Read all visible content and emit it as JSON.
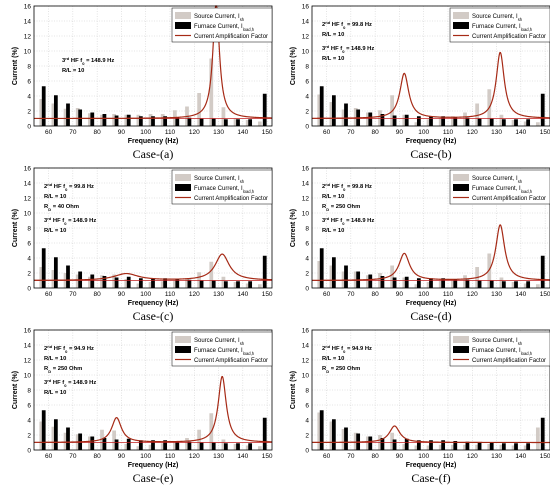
{
  "figure": {
    "captions": [
      "Case-(a)",
      "Case-(b)",
      "Case-(c)",
      "Case-(d)",
      "Case-(e)",
      "Case-(f)"
    ]
  },
  "colors": {
    "source_bar": "#d2cbc6",
    "furnace_bar": "#000000",
    "amp_line": "#a62a16",
    "baseline": "#c21f1f"
  },
  "chart_data": [
    {
      "type": "bar",
      "caption": "Case-(a)",
      "xlabel": "Frequency (Hz)",
      "ylabel": "Current (%)",
      "xlim": [
        54,
        152
      ],
      "ylim": [
        0,
        16
      ],
      "xticks": [
        60,
        70,
        80,
        90,
        100,
        110,
        120,
        130,
        140,
        150
      ],
      "yticks": [
        0,
        2,
        4,
        6,
        8,
        10,
        12,
        14,
        16
      ],
      "legend": [
        "Source Current, I_sh",
        "Furnace Current, I_load,h",
        "Current Amplification Factor"
      ],
      "annotations": [
        "3rd HF f0 = 148.9 Hz",
        "R/L = 10"
      ],
      "series": [
        {
          "name": "Source Current, I_sh",
          "kind": "bar",
          "x": [
            57,
            62,
            67,
            72,
            77,
            82,
            87,
            92,
            97,
            102,
            107,
            112,
            117,
            122,
            127,
            132,
            137,
            142,
            147
          ],
          "values": [
            3.6,
            3.0,
            2.3,
            2.4,
            1.7,
            1.5,
            1.6,
            1.5,
            1.5,
            1.6,
            1.6,
            2.1,
            2.6,
            4.4,
            9.0,
            2.5,
            1.0,
            0.8,
            0.6
          ]
        },
        {
          "name": "Furnace Current, I_load,h",
          "kind": "bar",
          "x": [
            58,
            63,
            68,
            73,
            78,
            83,
            88,
            93,
            98,
            103,
            108,
            113,
            118,
            123,
            128,
            133,
            138,
            143,
            149
          ],
          "values": [
            5.3,
            4.1,
            3.0,
            2.2,
            1.8,
            1.6,
            1.4,
            1.5,
            1.3,
            1.3,
            1.3,
            1.2,
            1.1,
            1.0,
            1.0,
            0.9,
            0.9,
            0.9,
            4.3
          ]
        },
        {
          "name": "Current Amplification Factor",
          "kind": "line",
          "peaks": [
            {
              "f": 129,
              "a": 15.5,
              "w": 1.6
            }
          ]
        }
      ]
    },
    {
      "type": "bar",
      "caption": "Case-(b)",
      "xlabel": "Frequency (Hz)",
      "ylabel": "Current (%)",
      "xlim": [
        54,
        152
      ],
      "ylim": [
        0,
        16
      ],
      "xticks": [
        60,
        70,
        80,
        90,
        100,
        110,
        120,
        130,
        140,
        150
      ],
      "yticks": [
        0,
        2,
        4,
        6,
        8,
        10,
        12,
        14,
        16
      ],
      "legend": [
        "Source Current, I_sh",
        "Furnace Current, I_load,h",
        "Current Amplification Factor"
      ],
      "annotations": [
        "2nd HF f0 = 99.8 Hz",
        "R/L = 10",
        "3rd HF f0 = 148.9 Hz",
        "R/L = 10"
      ],
      "series": [
        {
          "name": "Source Current, I_sh",
          "kind": "bar",
          "x": [
            57,
            62,
            67,
            72,
            77,
            82,
            87,
            92,
            97,
            102,
            107,
            112,
            117,
            122,
            127,
            132,
            137,
            142,
            147
          ],
          "values": [
            4.2,
            3.2,
            2.2,
            2.4,
            1.8,
            2.1,
            4.1,
            1.5,
            0.5,
            0.9,
            1.1,
            1.3,
            1.8,
            3.0,
            4.9,
            1.5,
            0.8,
            0.6,
            0.5
          ]
        },
        {
          "name": "Furnace Current, I_load,h",
          "kind": "bar",
          "x": [
            58,
            63,
            68,
            73,
            78,
            83,
            88,
            93,
            98,
            103,
            108,
            113,
            118,
            123,
            128,
            133,
            138,
            143,
            149
          ],
          "values": [
            5.3,
            4.1,
            3.0,
            2.2,
            1.8,
            1.6,
            1.4,
            1.5,
            1.3,
            1.3,
            1.3,
            1.2,
            1.1,
            1.0,
            1.0,
            0.9,
            0.9,
            0.9,
            4.3
          ]
        },
        {
          "name": "Current Amplification Factor",
          "kind": "line",
          "peaks": [
            {
              "f": 92,
              "a": 6.0,
              "w": 2.2
            },
            {
              "f": 131.5,
              "a": 8.8,
              "w": 2.0
            }
          ]
        }
      ]
    },
    {
      "type": "bar",
      "caption": "Case-(c)",
      "xlabel": "Frequency (Hz)",
      "ylabel": "Current (%)",
      "xlim": [
        54,
        152
      ],
      "ylim": [
        0,
        16
      ],
      "xticks": [
        60,
        70,
        80,
        90,
        100,
        110,
        120,
        130,
        140,
        150
      ],
      "yticks": [
        0,
        2,
        4,
        6,
        8,
        10,
        12,
        14,
        16
      ],
      "legend": [
        "Source Current, I_sh",
        "Furnace Current, I_load,h",
        "Current Amplification Factor"
      ],
      "annotations": [
        "2nd HF f0 = 99.8 Hz",
        "R/L = 10",
        "RD = 40 Ohm",
        "3rd HF f0 = 148.9 Hz",
        "R/L = 10"
      ],
      "series": [
        {
          "name": "Source Current, I_sh",
          "kind": "bar",
          "x": [
            57,
            62,
            67,
            72,
            77,
            82,
            87,
            92,
            97,
            102,
            107,
            112,
            117,
            122,
            127,
            132,
            137,
            142,
            147
          ],
          "values": [
            2.8,
            2.4,
            2.0,
            1.8,
            1.5,
            1.7,
            1.8,
            1.2,
            0.6,
            0.8,
            0.9,
            1.0,
            1.3,
            2.1,
            3.5,
            1.5,
            0.8,
            0.6,
            0.5
          ]
        },
        {
          "name": "Furnace Current, I_load,h",
          "kind": "bar",
          "x": [
            58,
            63,
            68,
            73,
            78,
            83,
            88,
            93,
            98,
            103,
            108,
            113,
            118,
            123,
            128,
            133,
            138,
            143,
            149
          ],
          "values": [
            5.3,
            4.1,
            3.0,
            2.2,
            1.8,
            1.6,
            1.4,
            1.5,
            1.3,
            1.3,
            1.3,
            1.2,
            1.1,
            1.0,
            1.0,
            0.9,
            0.9,
            0.9,
            4.3
          ]
        },
        {
          "name": "Current Amplification Factor",
          "kind": "line",
          "peaks": [
            {
              "f": 92,
              "a": 0.9,
              "w": 6.0
            },
            {
              "f": 131.5,
              "a": 3.5,
              "w": 3.5
            }
          ]
        }
      ]
    },
    {
      "type": "bar",
      "caption": "Case-(d)",
      "xlabel": "Frequency (Hz)",
      "ylabel": "Current (%)",
      "xlim": [
        54,
        152
      ],
      "ylim": [
        0,
        16
      ],
      "xticks": [
        60,
        70,
        80,
        90,
        100,
        110,
        120,
        130,
        140,
        150
      ],
      "yticks": [
        0,
        2,
        4,
        6,
        8,
        10,
        12,
        14,
        16
      ],
      "legend": [
        "Source Current, I_sh",
        "Furnace Current, I_load,h",
        "Current Amplification Factor"
      ],
      "annotations": [
        "2nd HF f0 = 99.8 Hz",
        "R/L = 10",
        "RD = 250 Ohm",
        "3rd HF f0 = 148.9 Hz",
        "R/L = 10"
      ],
      "series": [
        {
          "name": "Source Current, I_sh",
          "kind": "bar",
          "x": [
            57,
            62,
            67,
            72,
            77,
            82,
            87,
            92,
            97,
            102,
            107,
            112,
            117,
            122,
            127,
            132,
            137,
            142,
            147
          ],
          "values": [
            3.6,
            3.0,
            2.2,
            2.2,
            1.7,
            2.0,
            3.0,
            1.4,
            0.5,
            0.8,
            1.0,
            1.2,
            1.7,
            2.8,
            4.6,
            1.4,
            0.8,
            0.6,
            0.5
          ]
        },
        {
          "name": "Furnace Current, I_load,h",
          "kind": "bar",
          "x": [
            58,
            63,
            68,
            73,
            78,
            83,
            88,
            93,
            98,
            103,
            108,
            113,
            118,
            123,
            128,
            133,
            138,
            143,
            149
          ],
          "values": [
            5.3,
            4.1,
            3.0,
            2.2,
            1.8,
            1.6,
            1.4,
            1.5,
            1.3,
            1.3,
            1.3,
            1.2,
            1.1,
            1.0,
            1.0,
            0.9,
            0.9,
            0.9,
            4.3
          ]
        },
        {
          "name": "Current Amplification Factor",
          "kind": "line",
          "peaks": [
            {
              "f": 92,
              "a": 3.6,
              "w": 2.6
            },
            {
              "f": 131.5,
              "a": 7.4,
              "w": 2.2
            }
          ]
        }
      ]
    },
    {
      "type": "bar",
      "caption": "Case-(e)",
      "xlabel": "Frequency (Hz)",
      "ylabel": "Current (%)",
      "xlim": [
        54,
        152
      ],
      "ylim": [
        0,
        16
      ],
      "xticks": [
        60,
        70,
        80,
        90,
        100,
        110,
        120,
        130,
        140,
        150
      ],
      "yticks": [
        0,
        2,
        4,
        6,
        8,
        10,
        12,
        14,
        16
      ],
      "legend": [
        "Source Current, I_sh",
        "Furnace Current, I_load,h",
        "Current Amplification Factor"
      ],
      "annotations": [
        "2nd HF f0 = 94.9 Hz",
        "R/L = 10",
        "RD = 250 Ohm",
        "3rd HF f0 = 148.9 Hz",
        "R/L = 10"
      ],
      "series": [
        {
          "name": "Source Current, I_sh",
          "kind": "bar",
          "x": [
            57,
            62,
            67,
            72,
            77,
            82,
            87,
            92,
            97,
            102,
            107,
            112,
            117,
            122,
            127,
            132,
            137,
            142,
            147
          ],
          "values": [
            3.8,
            3.1,
            2.3,
            2.1,
            1.8,
            2.7,
            2.6,
            0.8,
            0.5,
            0.7,
            0.9,
            1.1,
            1.6,
            2.7,
            4.9,
            1.4,
            0.8,
            0.6,
            0.5
          ]
        },
        {
          "name": "Furnace Current, I_load,h",
          "kind": "bar",
          "x": [
            58,
            63,
            68,
            73,
            78,
            83,
            88,
            93,
            98,
            103,
            108,
            113,
            118,
            123,
            128,
            133,
            138,
            143,
            149
          ],
          "values": [
            5.3,
            4.1,
            3.0,
            2.2,
            1.8,
            1.6,
            1.4,
            1.5,
            1.3,
            1.3,
            1.3,
            1.2,
            1.1,
            1.0,
            1.0,
            0.9,
            0.9,
            0.9,
            4.3
          ]
        },
        {
          "name": "Current Amplification Factor",
          "kind": "line",
          "peaks": [
            {
              "f": 88,
              "a": 3.3,
              "w": 2.4
            },
            {
              "f": 131.5,
              "a": 8.8,
              "w": 2.0
            }
          ]
        }
      ]
    },
    {
      "type": "bar",
      "caption": "Case-(f)",
      "xlabel": "Frequency (Hz)",
      "ylabel": "Current (%)",
      "xlim": [
        54,
        152
      ],
      "ylim": [
        0,
        16
      ],
      "xticks": [
        60,
        70,
        80,
        90,
        100,
        110,
        120,
        130,
        140,
        150
      ],
      "yticks": [
        0,
        2,
        4,
        6,
        8,
        10,
        12,
        14,
        16
      ],
      "legend": [
        "Source Current, I_sh",
        "Furnace Current, I_load,h",
        "Current Amplification Factor"
      ],
      "annotations": [
        "2nd HF f0 = 94.9 Hz",
        "R/L = 10",
        "RD = 250 Ohm"
      ],
      "series": [
        {
          "name": "Source Current, I_sh",
          "kind": "bar",
          "x": [
            57,
            62,
            67,
            72,
            77,
            82,
            87,
            92,
            97,
            102,
            107,
            112,
            117,
            122,
            127,
            132,
            137,
            142,
            147
          ],
          "values": [
            5.0,
            3.8,
            2.8,
            2.3,
            1.8,
            2.0,
            2.3,
            0.8,
            0.6,
            0.6,
            0.7,
            0.7,
            0.7,
            0.7,
            0.8,
            0.7,
            0.6,
            0.6,
            3.0
          ]
        },
        {
          "name": "Furnace Current, I_load,h",
          "kind": "bar",
          "x": [
            58,
            63,
            68,
            73,
            78,
            83,
            88,
            93,
            98,
            103,
            108,
            113,
            118,
            123,
            128,
            133,
            138,
            143,
            149
          ],
          "values": [
            5.3,
            4.1,
            3.0,
            2.2,
            1.8,
            1.6,
            1.4,
            1.5,
            1.3,
            1.3,
            1.3,
            1.2,
            1.1,
            1.0,
            1.0,
            0.9,
            0.9,
            0.9,
            4.3
          ]
        },
        {
          "name": "Current Amplification Factor",
          "kind": "line",
          "peaks": [
            {
              "f": 88,
              "a": 2.2,
              "w": 2.6
            }
          ]
        }
      ]
    }
  ]
}
